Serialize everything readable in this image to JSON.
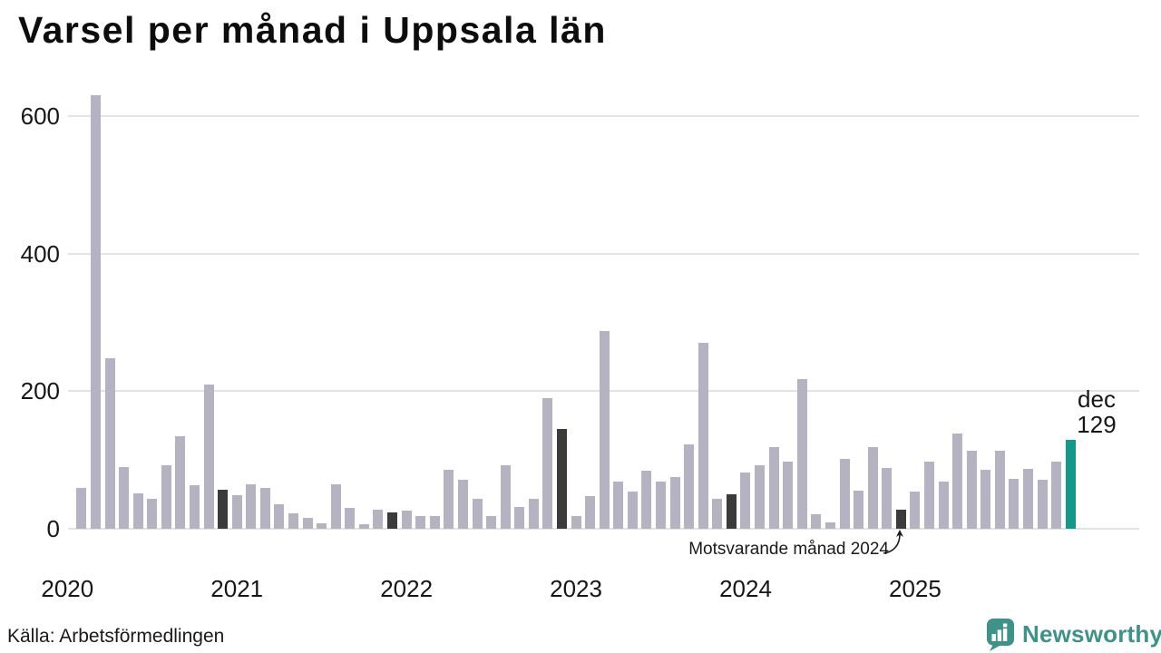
{
  "chart_data": {
    "type": "bar",
    "title": "Varsel per månad i Uppsala län",
    "x_start": "2020-01",
    "x_end": "2025-12",
    "values": [
      0,
      60,
      630,
      248,
      90,
      51,
      44,
      92,
      135,
      63,
      210,
      57,
      49,
      65,
      60,
      35,
      23,
      16,
      8,
      64,
      30,
      7,
      28,
      24,
      27,
      18,
      19,
      86,
      71,
      43,
      18,
      92,
      31,
      43,
      190,
      145,
      18,
      47,
      288,
      69,
      54,
      85,
      69,
      75,
      122,
      270,
      44,
      50,
      82,
      92,
      119,
      98,
      218,
      21,
      9,
      102,
      55,
      119,
      89,
      28,
      54,
      97,
      68,
      139,
      113,
      86,
      114,
      73,
      87,
      71,
      98,
      129
    ],
    "yticks": [
      0,
      200,
      400,
      600
    ],
    "ylim": [
      0,
      650
    ],
    "grid": true,
    "legend": false,
    "year_ticks": [
      {
        "label": "2020",
        "month_index": 0
      },
      {
        "label": "2021",
        "month_index": 12
      },
      {
        "label": "2022",
        "month_index": 24
      },
      {
        "label": "2023",
        "month_index": 36
      },
      {
        "label": "2024",
        "month_index": 48
      },
      {
        "label": "2025",
        "month_index": 60
      }
    ],
    "highlight_indices": [
      11,
      23,
      35,
      47,
      59
    ],
    "current_point": {
      "month_index": 71,
      "label": "dec",
      "value": "129"
    },
    "annotation": {
      "text": "Motsvarande månad 2024",
      "target_month_index": 59
    },
    "colors": {
      "bar": "#b5b3c2",
      "highlight": "#3b3b3b",
      "current": "#12998a",
      "gridline": "#e3e3e3",
      "text": "#161616",
      "logo": "#3e9388"
    }
  },
  "footer": {
    "source": "Källa: Arbetsförmedlingen",
    "logo_text": "Newsworthy"
  }
}
